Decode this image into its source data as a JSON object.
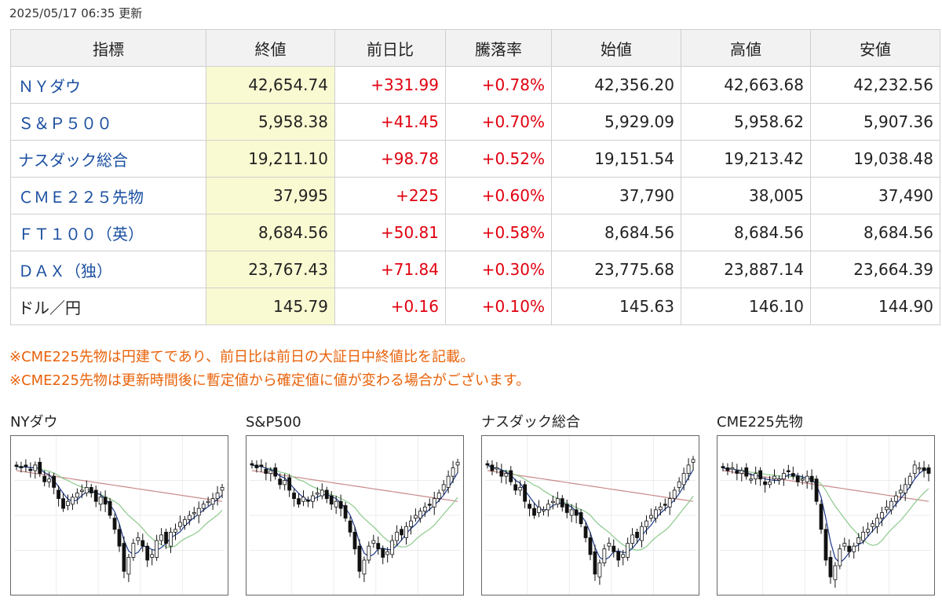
{
  "updated": "2025/05/17 06:35 更新",
  "table": {
    "headers": [
      "指標",
      "終値",
      "前日比",
      "騰落率",
      "始値",
      "高値",
      "安値"
    ],
    "rows": [
      {
        "name": "ＮＹダウ",
        "close": "42,654.74",
        "change": "+331.99",
        "pct": "+0.78%",
        "open": "42,356.20",
        "high": "42,663.68",
        "low": "42,232.56",
        "link": true
      },
      {
        "name": "Ｓ＆Ｐ５００",
        "close": "5,958.38",
        "change": "+41.45",
        "pct": "+0.70%",
        "open": "5,929.09",
        "high": "5,958.62",
        "low": "5,907.36",
        "link": true
      },
      {
        "name": "ナスダック総合",
        "close": "19,211.10",
        "change": "+98.78",
        "pct": "+0.52%",
        "open": "19,151.54",
        "high": "19,213.42",
        "low": "19,038.48",
        "link": true
      },
      {
        "name": "ＣＭＥ２２５先物",
        "close": "37,995",
        "change": "+225",
        "pct": "+0.60%",
        "open": "37,790",
        "high": "38,005",
        "low": "37,490",
        "link": true
      },
      {
        "name": "ＦＴ１００（英）",
        "close": "8,684.56",
        "change": "+50.81",
        "pct": "+0.58%",
        "open": "8,684.56",
        "high": "8,684.56",
        "low": "8,684.56",
        "link": true
      },
      {
        "name": "ＤＡＸ（独）",
        "close": "23,767.43",
        "change": "+71.84",
        "pct": "+0.30%",
        "open": "23,775.68",
        "high": "23,887.14",
        "low": "23,664.39",
        "link": true
      },
      {
        "name": "ドル／円",
        "close": "145.79",
        "change": "+0.16",
        "pct": "+0.10%",
        "open": "145.63",
        "high": "146.10",
        "low": "144.90",
        "link": false
      }
    ]
  },
  "notes": [
    "※CME225先物は円建てであり、前日比は前日の大証日中終値比を記載。",
    "※CME225先物は更新時間後に暫定値から確定値に値が変わる場合がございます。"
  ],
  "charts": [
    {
      "title": "NYダウ",
      "closes": [
        0.85,
        0.84,
        0.85,
        0.82,
        0.86,
        0.8,
        0.74,
        0.76,
        0.7,
        0.62,
        0.55,
        0.6,
        0.63,
        0.66,
        0.68,
        0.7,
        0.66,
        0.6,
        0.63,
        0.58,
        0.5,
        0.4,
        0.28,
        0.1,
        0.2,
        0.3,
        0.34,
        0.28,
        0.18,
        0.22,
        0.32,
        0.36,
        0.3,
        0.38,
        0.4,
        0.45,
        0.47,
        0.5,
        0.52,
        0.55,
        0.58,
        0.6,
        0.62,
        0.66,
        0.7
      ]
    },
    {
      "title": "S&P500",
      "closes": [
        0.86,
        0.84,
        0.85,
        0.8,
        0.82,
        0.78,
        0.72,
        0.75,
        0.68,
        0.62,
        0.58,
        0.63,
        0.6,
        0.64,
        0.66,
        0.68,
        0.62,
        0.58,
        0.6,
        0.55,
        0.48,
        0.38,
        0.26,
        0.1,
        0.18,
        0.28,
        0.32,
        0.26,
        0.2,
        0.24,
        0.32,
        0.38,
        0.36,
        0.42,
        0.46,
        0.5,
        0.53,
        0.56,
        0.58,
        0.62,
        0.66,
        0.72,
        0.78,
        0.84,
        0.88
      ]
    },
    {
      "title": "ナスダック総合",
      "closes": [
        0.86,
        0.82,
        0.84,
        0.78,
        0.8,
        0.74,
        0.68,
        0.7,
        0.6,
        0.55,
        0.5,
        0.56,
        0.54,
        0.58,
        0.6,
        0.62,
        0.56,
        0.52,
        0.54,
        0.5,
        0.44,
        0.34,
        0.22,
        0.08,
        0.16,
        0.26,
        0.3,
        0.24,
        0.18,
        0.22,
        0.3,
        0.36,
        0.34,
        0.42,
        0.46,
        0.5,
        0.54,
        0.56,
        0.58,
        0.62,
        0.68,
        0.74,
        0.8,
        0.86,
        0.9
      ]
    },
    {
      "title": "CME225先物",
      "closes": [
        0.84,
        0.82,
        0.84,
        0.8,
        0.82,
        0.78,
        0.76,
        0.8,
        0.76,
        0.72,
        0.74,
        0.78,
        0.76,
        0.8,
        0.82,
        0.78,
        0.74,
        0.76,
        0.78,
        0.74,
        0.6,
        0.4,
        0.18,
        0.06,
        0.14,
        0.26,
        0.3,
        0.24,
        0.28,
        0.34,
        0.38,
        0.4,
        0.44,
        0.48,
        0.52,
        0.56,
        0.6,
        0.64,
        0.68,
        0.72,
        0.78,
        0.86,
        0.84,
        0.82,
        0.8
      ]
    }
  ]
}
